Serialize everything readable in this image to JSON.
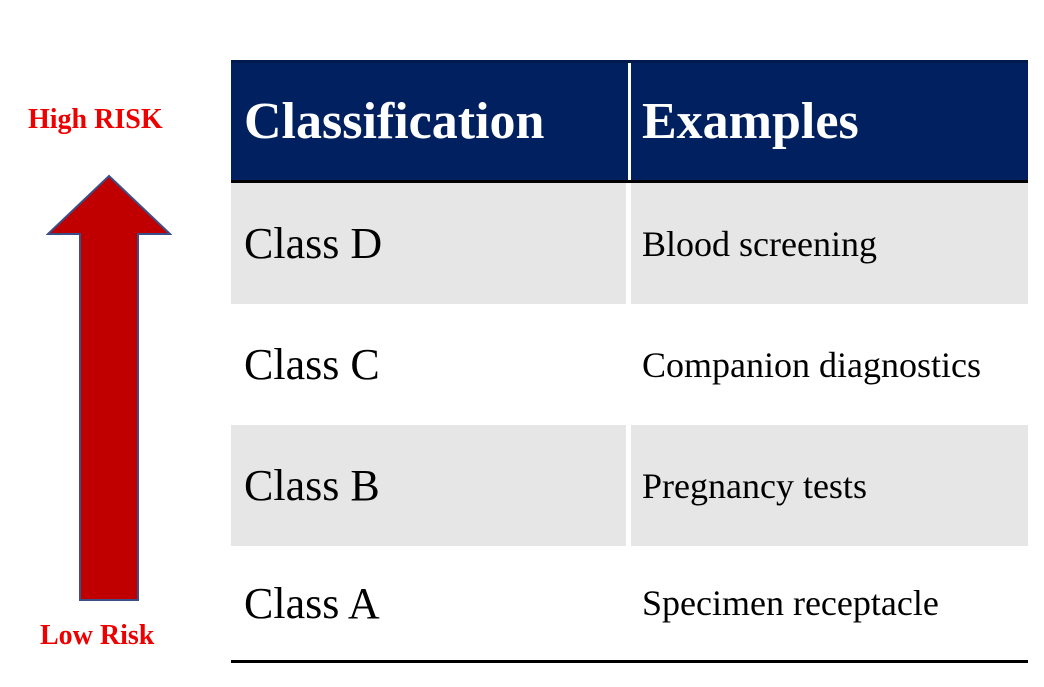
{
  "risk_scale": {
    "high_label": "High RISK",
    "low_label": "Low Risk",
    "arrow_color": "#c00000"
  },
  "table": {
    "header_color": "#002060",
    "stripe_color": "#e7e6e6",
    "columns": [
      "Classification",
      "Examples"
    ],
    "rows": [
      {
        "classification": "Class D",
        "example": "Blood screening"
      },
      {
        "classification": "Class C",
        "example": "Companion diagnostics"
      },
      {
        "classification": "Class B",
        "example": "Pregnancy tests"
      },
      {
        "classification": "Class A",
        "example": "Specimen receptacle"
      }
    ]
  }
}
